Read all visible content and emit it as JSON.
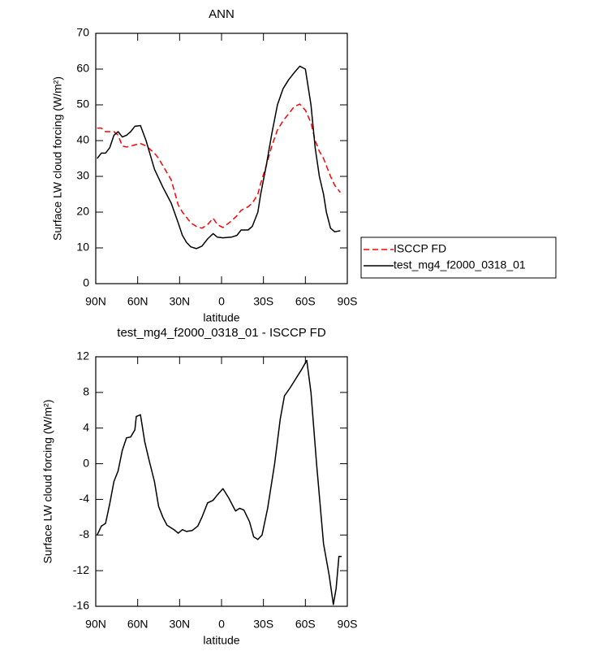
{
  "chart_data": [
    {
      "type": "line",
      "title": "ANN",
      "xlabel": "latitude",
      "ylabel": "Surface LW cloud forcing (W/m²)",
      "x": [
        89,
        86,
        83,
        80,
        77,
        74,
        71,
        68,
        65,
        62,
        58,
        54,
        51,
        48,
        45,
        42,
        36,
        31,
        28,
        25,
        22,
        18,
        14,
        10,
        6,
        3,
        -1,
        -7,
        -11,
        -14,
        -19,
        -22,
        -26,
        -28,
        -32,
        -36,
        -40,
        -44,
        -48,
        -52,
        -56,
        -60,
        -64,
        -67,
        -70,
        -73,
        -75,
        -78,
        -81,
        -85
      ],
      "series": [
        {
          "name": "ISCCP FD",
          "color": "#ff0000",
          "linestyle": "dashed",
          "values": [
            43.5,
            43.5,
            42.5,
            42.5,
            42.5,
            41.5,
            38.5,
            38.2,
            38.5,
            38.8,
            39.2,
            38.5,
            37.5,
            36.5,
            35,
            33,
            29,
            22,
            20,
            18.5,
            17,
            16,
            15.5,
            16.5,
            18.3,
            16.5,
            15.7,
            17.5,
            19,
            20.5,
            21.5,
            22.5,
            25,
            28,
            33,
            38.5,
            43,
            45.5,
            47.5,
            49.5,
            50.2,
            48.5,
            45,
            40,
            37,
            35,
            33,
            30,
            27.5,
            25.5
          ]
        },
        {
          "name": "test_mg4_f2000_0318_01",
          "color": "#000000",
          "linestyle": "solid",
          "values": [
            35,
            36.5,
            36.5,
            38,
            41.5,
            42.5,
            41,
            41.5,
            42.5,
            44,
            44.2,
            40,
            36,
            32,
            29.5,
            27,
            22.5,
            17,
            13.5,
            11.5,
            10.3,
            9.8,
            10.5,
            12.5,
            14,
            13,
            12.8,
            13,
            13.5,
            15,
            15,
            16,
            20,
            25,
            33,
            42,
            50,
            54.5,
            57,
            59,
            60.8,
            60,
            50,
            38,
            30,
            25,
            20,
            15.5,
            14.5,
            14.8
          ]
        }
      ],
      "xlim": [
        90,
        -90
      ],
      "xticks": [
        {
          "value": 90,
          "label": "90N"
        },
        {
          "value": 60,
          "label": "60N"
        },
        {
          "value": 30,
          "label": "30N"
        },
        0,
        {
          "value": -30,
          "label": "30S"
        },
        {
          "value": -60,
          "label": "60S"
        },
        {
          "value": -90,
          "label": "90S"
        }
      ],
      "ylim": [
        0,
        70
      ],
      "yticks": [
        0,
        10,
        20,
        30,
        40,
        50,
        60,
        70
      ],
      "legend": "right"
    },
    {
      "type": "line",
      "title": "test_mg4_f2000_0318_01 - ISCCP FD",
      "xlabel": "latitude",
      "ylabel": "Surface LW cloud forcing (W/m²)",
      "x": [
        89,
        86,
        83,
        80,
        77,
        74,
        71,
        68,
        65,
        62,
        61,
        58,
        55,
        52,
        48,
        45,
        42,
        39,
        34,
        31,
        28,
        25,
        21,
        17,
        14,
        10,
        6,
        3,
        -1,
        -5,
        -10,
        -13,
        -16,
        -20,
        -23,
        -26,
        -29,
        -33,
        -38,
        -42,
        -45,
        -49,
        -53,
        -57,
        -61,
        -64,
        -68,
        -73,
        -77,
        -80,
        -82,
        -84,
        -86
      ],
      "values": [
        -8,
        -7,
        -6.7,
        -4.5,
        -2,
        -0.8,
        1.5,
        2.9,
        3,
        3.8,
        5.3,
        5.5,
        2.5,
        0.5,
        -2,
        -4.8,
        -6,
        -6.9,
        -7.4,
        -7.8,
        -7.4,
        -7.6,
        -7.5,
        -7,
        -6,
        -4.4,
        -4.1,
        -3.5,
        -2.8,
        -3.8,
        -5.3,
        -5,
        -5.2,
        -6.5,
        -8.2,
        -8.5,
        -8,
        -5,
        0,
        5,
        7.6,
        8.5,
        9.5,
        10.5,
        11.6,
        8,
        0,
        -9,
        -12.5,
        -15.8,
        -14,
        -10.4,
        -10.4
      ],
      "color": "#000000",
      "xlim": [
        90,
        -90
      ],
      "xticks": [
        {
          "value": 90,
          "label": "90N"
        },
        {
          "value": 60,
          "label": "60N"
        },
        {
          "value": 30,
          "label": "30N"
        },
        0,
        {
          "value": -30,
          "label": "30S"
        },
        {
          "value": -60,
          "label": "60S"
        },
        {
          "value": -90,
          "label": "90S"
        }
      ],
      "ylim": [
        -16,
        12
      ],
      "yticks": [
        -16,
        -12,
        -8,
        -4,
        0,
        4,
        8,
        12
      ]
    }
  ]
}
